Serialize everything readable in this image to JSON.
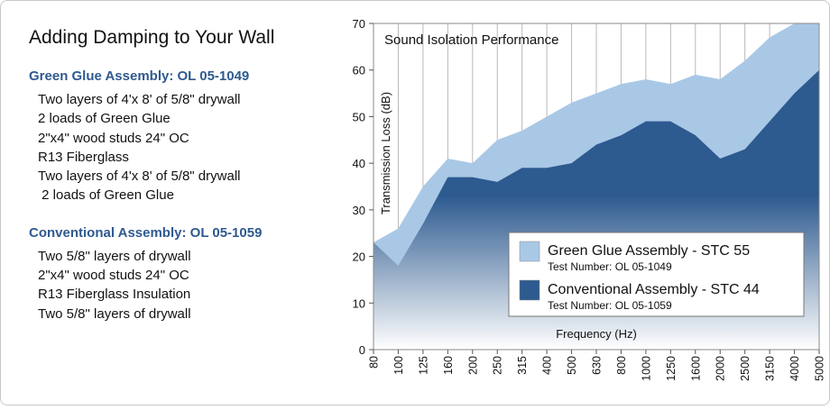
{
  "left_panel": {
    "title": "Adding Damping to Your Wall",
    "sections": [
      {
        "heading": "Green Glue Assembly: OL 05-1049",
        "items": [
          "Two layers of 4'x 8' of 5/8\" drywall",
          "2 loads of Green Glue",
          "2\"x4\" wood studs 24\" OC",
          "R13 Fiberglass",
          "Two layers of 4'x 8' of 5/8\" drywall",
          " 2 loads of Green Glue"
        ]
      },
      {
        "heading": "Conventional Assembly: OL 05-1059",
        "items": [
          "Two 5/8\" layers of drywall",
          "2\"x4\" wood studs 24\" OC",
          "R13 Fiberglass Insulation",
          "Two 5/8\" layers of drywall"
        ]
      }
    ]
  },
  "chart_data": {
    "type": "area",
    "title": "Sound Isolation Performance",
    "xlabel": "Frequency (Hz)",
    "ylabel": "Transmission Loss (dB)",
    "ylim": [
      0,
      70
    ],
    "yticks": [
      0,
      10,
      20,
      30,
      40,
      50,
      60,
      70
    ],
    "categories": [
      "80",
      "100",
      "125",
      "160",
      "200",
      "250",
      "315",
      "400",
      "500",
      "630",
      "800",
      "1000",
      "1250",
      "1600",
      "2000",
      "2500",
      "3150",
      "4000",
      "5000"
    ],
    "series": [
      {
        "name": "Green Glue Assembly - STC 55",
        "test_number": "Test Number: OL 05-1049",
        "color": "#a9c8e6",
        "values": [
          23,
          26,
          35,
          41,
          40,
          45,
          47,
          50,
          53,
          55,
          57,
          58,
          57,
          59,
          58,
          62,
          67,
          70,
          70
        ]
      },
      {
        "name": "Conventional Assembly - STC 44",
        "test_number": "Test Number: OL 05-1059",
        "color": "#2d5a8f",
        "values": [
          23,
          18,
          27,
          37,
          37,
          36,
          39,
          39,
          40,
          44,
          46,
          49,
          49,
          46,
          41,
          43,
          49,
          55,
          60
        ]
      }
    ],
    "grid": "vertical",
    "legend_position": "bottom-right"
  }
}
